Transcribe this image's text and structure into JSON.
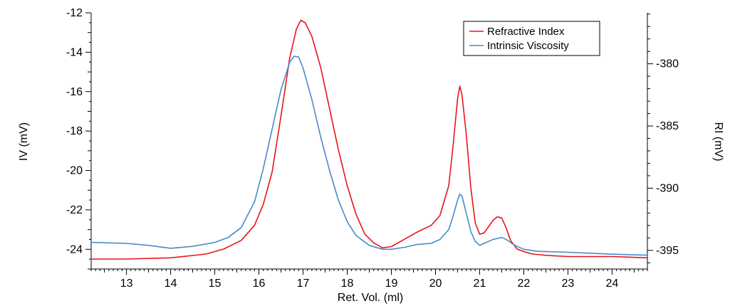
{
  "chart_data": {
    "type": "line",
    "title": "",
    "xlabel": "Ret. Vol. (ml)",
    "ylabel_left": "IV (mV)",
    "ylabel_right": "RI (mV)",
    "xlim": [
      12.2,
      24.8
    ],
    "ylim_left": [
      -25.0,
      -12.0
    ],
    "ylim_right": [
      -396.5,
      -375.9
    ],
    "x_ticks": [
      "13",
      "14",
      "15",
      "16",
      "17",
      "18",
      "19",
      "20",
      "21",
      "22",
      "23",
      "24"
    ],
    "y_left_ticks": [
      "-12",
      "-14",
      "-16",
      "-18",
      "-20",
      "-22",
      "-24"
    ],
    "y_right_ticks": [
      "-380",
      "-385",
      "-390",
      "-395"
    ],
    "grid": false,
    "legend_position": "top-right",
    "series": [
      {
        "name": "Refractive Index",
        "axis": "right",
        "color": "#e8141c",
        "x": [
          12.2,
          13.0,
          14.0,
          14.8,
          15.2,
          15.6,
          15.9,
          16.1,
          16.3,
          16.5,
          16.7,
          16.85,
          16.95,
          17.05,
          17.2,
          17.4,
          17.6,
          17.8,
          18.0,
          18.2,
          18.4,
          18.6,
          18.8,
          19.0,
          19.3,
          19.6,
          19.9,
          20.1,
          20.3,
          20.4,
          20.5,
          20.55,
          20.6,
          20.7,
          20.8,
          20.9,
          21.0,
          21.1,
          21.2,
          21.3,
          21.4,
          21.5,
          21.6,
          21.7,
          21.85,
          22.0,
          22.2,
          22.5,
          23.0,
          23.5,
          24.0,
          24.8
        ],
        "values": [
          -395.7,
          -395.7,
          -395.6,
          -395.3,
          -394.9,
          -394.2,
          -393.0,
          -391.3,
          -388.7,
          -384.2,
          -379.5,
          -377.2,
          -376.5,
          -376.7,
          -377.8,
          -380.3,
          -383.6,
          -386.9,
          -389.8,
          -392.1,
          -393.7,
          -394.4,
          -394.8,
          -394.7,
          -394.1,
          -393.5,
          -393.0,
          -392.2,
          -389.8,
          -386.5,
          -382.8,
          -381.8,
          -382.5,
          -385.8,
          -390.0,
          -392.8,
          -393.7,
          -393.6,
          -393.1,
          -392.6,
          -392.3,
          -392.4,
          -393.2,
          -394.2,
          -394.9,
          -395.1,
          -395.3,
          -395.4,
          -395.5,
          -395.5,
          -395.5,
          -395.6
        ]
      },
      {
        "name": "Intrinsic Viscosity",
        "axis": "left",
        "color": "#4a8ac8",
        "x": [
          12.2,
          13.0,
          13.5,
          14.0,
          14.5,
          15.0,
          15.3,
          15.6,
          15.9,
          16.1,
          16.3,
          16.5,
          16.7,
          16.8,
          16.9,
          17.0,
          17.2,
          17.4,
          17.6,
          17.8,
          18.0,
          18.2,
          18.5,
          18.8,
          19.0,
          19.3,
          19.6,
          19.9,
          20.1,
          20.3,
          20.4,
          20.5,
          20.55,
          20.6,
          20.7,
          20.8,
          20.9,
          21.0,
          21.1,
          21.3,
          21.5,
          21.6,
          21.8,
          22.0,
          22.3,
          23.0,
          23.5,
          24.0,
          24.8
        ],
        "values": [
          -23.65,
          -23.7,
          -23.8,
          -23.95,
          -23.85,
          -23.65,
          -23.4,
          -22.9,
          -21.6,
          -19.9,
          -17.9,
          -15.9,
          -14.5,
          -14.2,
          -14.25,
          -14.8,
          -16.4,
          -18.3,
          -20.0,
          -21.5,
          -22.6,
          -23.3,
          -23.8,
          -24.0,
          -24.0,
          -23.9,
          -23.75,
          -23.7,
          -23.5,
          -23.0,
          -22.3,
          -21.5,
          -21.2,
          -21.3,
          -22.2,
          -23.1,
          -23.6,
          -23.8,
          -23.7,
          -23.5,
          -23.4,
          -23.5,
          -23.8,
          -24.0,
          -24.1,
          -24.15,
          -24.2,
          -24.25,
          -24.3
        ]
      }
    ]
  }
}
